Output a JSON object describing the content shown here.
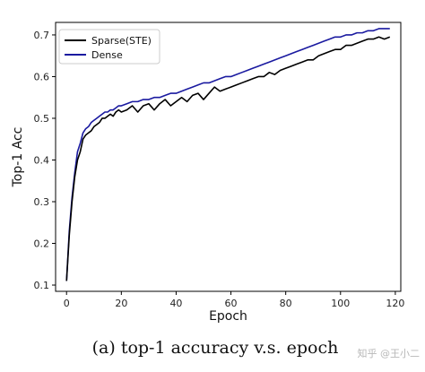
{
  "chart_data": {
    "type": "line",
    "xlabel": "Epoch",
    "ylabel": "Top-1 Acc",
    "xlim": [
      -4,
      122
    ],
    "ylim": [
      0.085,
      0.73
    ],
    "xticks": [
      0,
      20,
      40,
      60,
      80,
      100,
      120
    ],
    "yticks": [
      0.1,
      0.2,
      0.3,
      0.4,
      0.5,
      0.6,
      0.7
    ],
    "xtick_labels": [
      "0",
      "20",
      "40",
      "60",
      "80",
      "100",
      "120"
    ],
    "ytick_labels": [
      "0.1",
      "0.2",
      "0.3",
      "0.4",
      "0.5",
      "0.6",
      "0.7"
    ],
    "grid": false,
    "legend_position": "top-left",
    "series": [
      {
        "name": "Sparse(STE)",
        "color": "#000000",
        "x": [
          0,
          1,
          2,
          3,
          4,
          5,
          6,
          7,
          8,
          9,
          10,
          11,
          12,
          13,
          14,
          15,
          16,
          17,
          18,
          19,
          20,
          22,
          24,
          26,
          28,
          30,
          32,
          34,
          36,
          38,
          40,
          42,
          44,
          46,
          48,
          50,
          52,
          54,
          56,
          58,
          60,
          62,
          64,
          66,
          68,
          70,
          72,
          74,
          76,
          78,
          80,
          82,
          84,
          86,
          88,
          90,
          92,
          94,
          96,
          98,
          100,
          102,
          104,
          106,
          108,
          110,
          112,
          114,
          116,
          118
        ],
        "y": [
          0.11,
          0.22,
          0.3,
          0.36,
          0.4,
          0.42,
          0.45,
          0.46,
          0.465,
          0.47,
          0.48,
          0.485,
          0.49,
          0.5,
          0.5,
          0.505,
          0.51,
          0.505,
          0.515,
          0.52,
          0.515,
          0.52,
          0.53,
          0.515,
          0.53,
          0.535,
          0.52,
          0.535,
          0.545,
          0.53,
          0.54,
          0.55,
          0.54,
          0.555,
          0.56,
          0.545,
          0.56,
          0.575,
          0.565,
          0.57,
          0.575,
          0.58,
          0.585,
          0.59,
          0.595,
          0.6,
          0.6,
          0.61,
          0.605,
          0.615,
          0.62,
          0.625,
          0.63,
          0.635,
          0.64,
          0.64,
          0.65,
          0.655,
          0.66,
          0.665,
          0.665,
          0.675,
          0.675,
          0.68,
          0.685,
          0.69,
          0.69,
          0.695,
          0.69,
          0.695
        ]
      },
      {
        "name": "Dense",
        "color": "#1a1aa0",
        "x": [
          0,
          1,
          2,
          3,
          4,
          5,
          6,
          7,
          8,
          9,
          10,
          11,
          12,
          13,
          14,
          15,
          16,
          17,
          18,
          19,
          20,
          22,
          24,
          26,
          28,
          30,
          32,
          34,
          36,
          38,
          40,
          42,
          44,
          46,
          48,
          50,
          52,
          54,
          56,
          58,
          60,
          62,
          64,
          66,
          68,
          70,
          72,
          74,
          76,
          78,
          80,
          82,
          84,
          86,
          88,
          90,
          92,
          94,
          96,
          98,
          100,
          102,
          104,
          106,
          108,
          110,
          112,
          114,
          116,
          118
        ],
        "y": [
          0.11,
          0.23,
          0.31,
          0.37,
          0.42,
          0.44,
          0.465,
          0.475,
          0.48,
          0.49,
          0.495,
          0.5,
          0.505,
          0.51,
          0.515,
          0.515,
          0.52,
          0.52,
          0.525,
          0.53,
          0.53,
          0.535,
          0.54,
          0.54,
          0.545,
          0.545,
          0.55,
          0.55,
          0.555,
          0.56,
          0.56,
          0.565,
          0.57,
          0.575,
          0.58,
          0.585,
          0.585,
          0.59,
          0.595,
          0.6,
          0.6,
          0.605,
          0.61,
          0.615,
          0.62,
          0.625,
          0.63,
          0.635,
          0.64,
          0.645,
          0.65,
          0.655,
          0.66,
          0.665,
          0.67,
          0.675,
          0.68,
          0.685,
          0.69,
          0.695,
          0.695,
          0.7,
          0.7,
          0.705,
          0.705,
          0.71,
          0.71,
          0.715,
          0.715,
          0.715
        ]
      }
    ]
  },
  "caption": "(a) top-1 accuracy v.s. epoch",
  "watermark": "知乎 @王小二"
}
